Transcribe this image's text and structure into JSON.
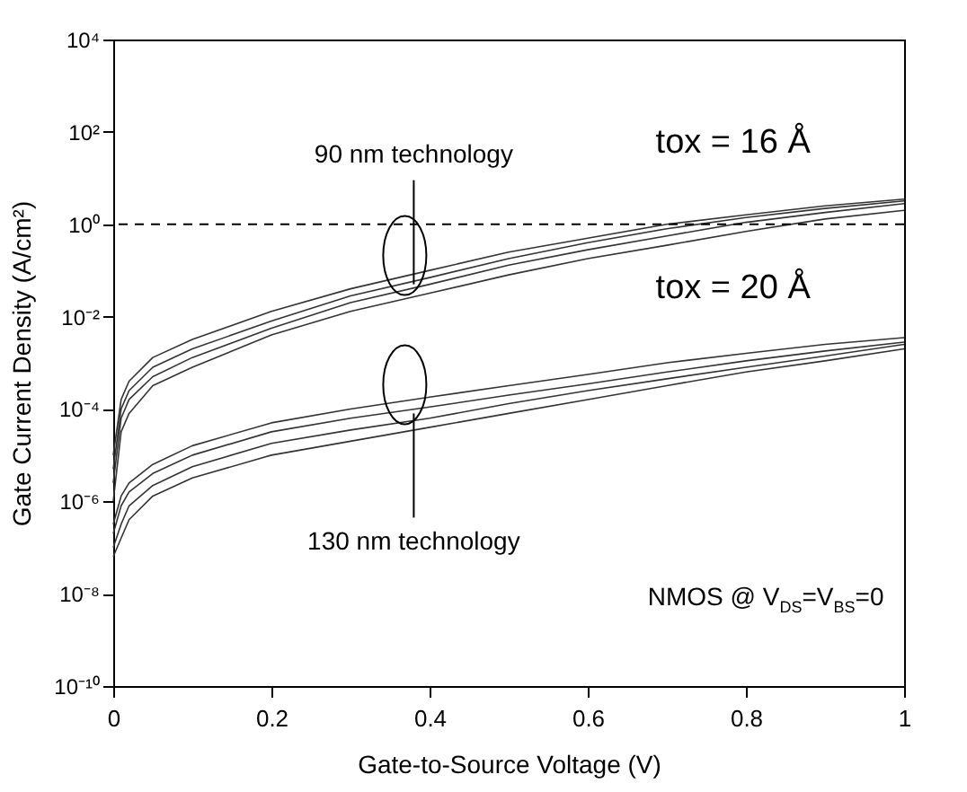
{
  "chart_data": {
    "type": "line",
    "xlabel": "Gate-to-Source Voltage (V)",
    "ylabel": "Gate Current Density (A/cm²)",
    "x": [
      0,
      0.01,
      0.02,
      0.05,
      0.1,
      0.2,
      0.3,
      0.4,
      0.5,
      0.6,
      0.7,
      0.8,
      0.9,
      1.0
    ],
    "series": [
      {
        "color": "#333333",
        "values": [
          1e-05,
          0.00016,
          0.0004,
          0.0013,
          0.0032,
          0.013,
          0.04,
          0.1,
          0.25,
          0.5,
          1,
          1.6,
          2.5,
          3.5
        ]
      },
      {
        "color": "#333333",
        "values": [
          5e-06,
          0.0001,
          0.00025,
          0.0008,
          0.002,
          0.008,
          0.028,
          0.07,
          0.18,
          0.4,
          0.8,
          1.4,
          2.2,
          3.2
        ]
      },
      {
        "color": "#333333",
        "values": [
          2.5e-06,
          6.3e-05,
          0.00016,
          0.0005,
          0.0013,
          0.0056,
          0.02,
          0.05,
          0.13,
          0.28,
          0.56,
          1.1,
          1.8,
          2.8
        ]
      },
      {
        "color": "#333333",
        "values": [
          1e-06,
          3.2e-05,
          8e-05,
          0.00032,
          0.0008,
          0.004,
          0.013,
          0.032,
          0.08,
          0.18,
          0.35,
          0.7,
          1.3,
          2
        ]
      },
      {
        "color": "#333333",
        "values": [
          3.2e-07,
          1.3e-06,
          2.5e-06,
          6.3e-06,
          1.6e-05,
          5e-05,
          0.0001,
          0.00018,
          0.00032,
          0.00056,
          0.001,
          0.0016,
          0.0025,
          0.0035
        ]
      },
      {
        "color": "#333333",
        "values": [
          2e-07,
          8e-07,
          1.6e-06,
          4e-06,
          1e-05,
          3.2e-05,
          6.3e-05,
          0.00011,
          0.0002,
          0.00035,
          0.00063,
          0.0011,
          0.0018,
          0.0028
        ]
      },
      {
        "color": "#333333",
        "values": [
          1e-07,
          3.2e-07,
          8e-07,
          2.2e-06,
          5.6e-06,
          1.8e-05,
          3.5e-05,
          6.3e-05,
          0.00013,
          0.00025,
          0.00045,
          0.0008,
          0.0014,
          0.0025
        ]
      },
      {
        "color": "#333333",
        "values": [
          6.3e-08,
          1.6e-07,
          4e-07,
          1.3e-06,
          3.2e-06,
          1e-05,
          2e-05,
          4e-05,
          8e-05,
          0.00016,
          0.00032,
          0.00063,
          0.0011,
          0.002
        ]
      }
    ],
    "xlim": [
      0,
      1
    ],
    "xticks": [
      0,
      0.2,
      0.4,
      0.6,
      0.8,
      1
    ],
    "ylim": [
      1e-10,
      10000.0
    ],
    "yticks": [
      {
        "value": 1e-10,
        "label": "10⁻¹⁰"
      },
      {
        "value": 1e-08,
        "label": "10⁻⁸"
      },
      {
        "value": 1e-06,
        "label": "10⁻⁶"
      },
      {
        "value": 0.0001,
        "label": "10⁻⁴"
      },
      {
        "value": 0.01,
        "label": "10⁻²"
      },
      {
        "value": 1,
        "label": "10⁰"
      },
      {
        "value": 100,
        "label": "10²"
      },
      {
        "value": 10000,
        "label": "10⁴"
      }
    ],
    "log": "y",
    "grid": false,
    "legend": false,
    "marker": "none",
    "line_style": "solid",
    "ref_lines": [
      {
        "axis": "y",
        "value": 1,
        "line_style": "dashed",
        "color": "#000000"
      }
    ],
    "annotations": [
      {
        "text": "90 nm technology",
        "x": 0.38,
        "y": 0.05
      },
      "tox = 16 Å",
      "tox = 20 Å",
      {
        "text": "130 nm technology",
        "x": 0.38,
        "y": 8e-05
      },
      "NMOS @ V$_{DS}$=V$_{BS}$=0"
    ]
  }
}
